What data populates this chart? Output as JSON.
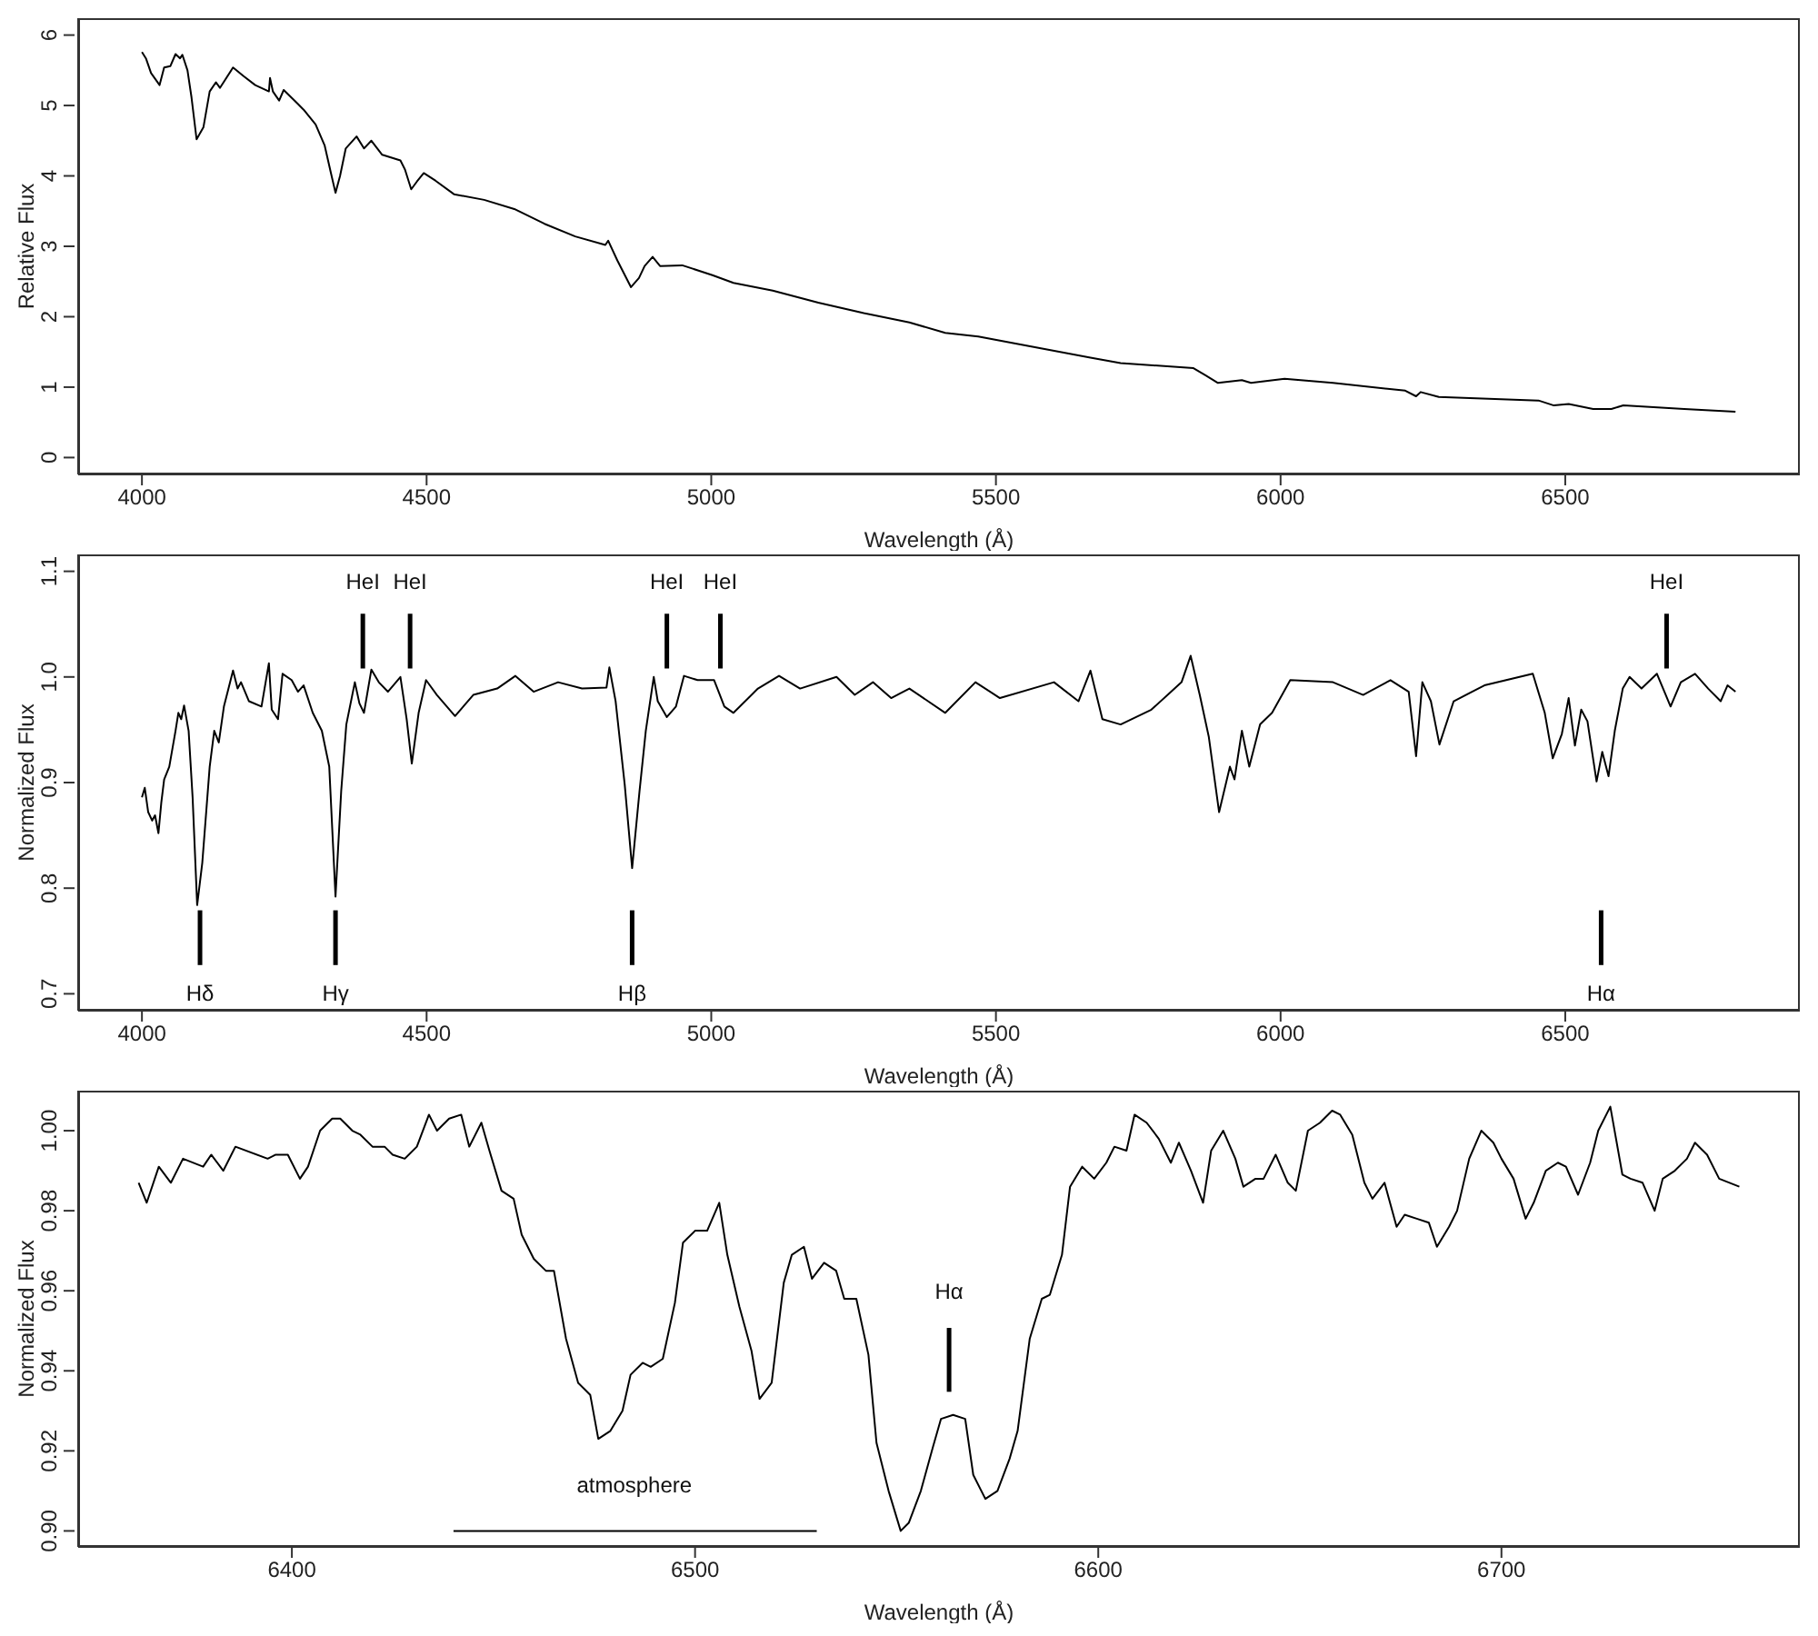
{
  "chart_data": [
    {
      "type": "line",
      "xlabel": "Wavelength (Å)",
      "ylabel": "Relative Flux",
      "xlim": [
        3888,
        6912
      ],
      "xticks": [
        4000,
        4500,
        5000,
        5500,
        6000,
        6500
      ],
      "ylim": [
        -0.24,
        6.24
      ],
      "yticks": [
        0,
        1,
        2,
        3,
        4,
        5,
        6
      ],
      "series": [
        {
          "color": "#000000",
          "x": [
            4000,
            4007,
            4016,
            4031,
            4039,
            4050,
            4059,
            4067,
            4071,
            4080,
            4087,
            4096,
            4108,
            4119,
            4130,
            4137,
            4160,
            4178,
            4199,
            4223,
            4225,
            4230,
            4241,
            4249,
            4273,
            4284,
            4305,
            4321,
            4332,
            4340,
            4348,
            4358,
            4377,
            4390,
            4403,
            4422,
            4454,
            4462,
            4473,
            4483,
            4495,
            4516,
            4548,
            4601,
            4654,
            4707,
            4761,
            4814,
            4819,
            4835,
            4859,
            4873,
            4883,
            4897,
            4910,
            4949,
            5002,
            5039,
            5108,
            5188,
            5268,
            5348,
            5411,
            5469,
            5560,
            5666,
            5719,
            5847,
            5868,
            5890,
            5932,
            5948,
            6007,
            6092,
            6219,
            6238,
            6246,
            6278,
            6453,
            6480,
            6506,
            6549,
            6581,
            6602,
            6709,
            6799
          ],
          "values": [
            5.76,
            5.67,
            5.46,
            5.29,
            5.54,
            5.56,
            5.73,
            5.67,
            5.72,
            5.5,
            5.12,
            4.52,
            4.69,
            5.2,
            5.33,
            5.25,
            5.54,
            5.42,
            5.29,
            5.2,
            5.39,
            5.2,
            5.07,
            5.22,
            5.03,
            4.94,
            4.73,
            4.43,
            4.04,
            3.76,
            4.0,
            4.39,
            4.56,
            4.39,
            4.5,
            4.3,
            4.22,
            4.09,
            3.81,
            3.92,
            4.04,
            3.93,
            3.74,
            3.66,
            3.53,
            3.32,
            3.14,
            3.02,
            3.08,
            2.8,
            2.42,
            2.55,
            2.72,
            2.85,
            2.72,
            2.73,
            2.59,
            2.48,
            2.37,
            2.2,
            2.05,
            1.92,
            1.77,
            1.72,
            1.58,
            1.42,
            1.34,
            1.27,
            1.17,
            1.06,
            1.1,
            1.06,
            1.12,
            1.06,
            0.95,
            0.87,
            0.93,
            0.86,
            0.81,
            0.74,
            0.76,
            0.69,
            0.69,
            0.74,
            0.69,
            0.65
          ]
        }
      ]
    },
    {
      "type": "line",
      "xlabel": "Wavelength (Å)",
      "ylabel": "Normalized Flux",
      "xlim": [
        3888,
        6912
      ],
      "xticks": [
        4000,
        4500,
        5000,
        5500,
        6000,
        6500
      ],
      "ylim": [
        0.684,
        1.116
      ],
      "yticks": [
        0.7,
        0.8,
        0.9,
        {
          "value": 1,
          "label": "1.0"
        },
        1.1
      ],
      "series": [
        {
          "color": "#000000",
          "x": [
            4000,
            4005,
            4011,
            4018,
            4023,
            4029,
            4034,
            4039,
            4048,
            4059,
            4064,
            4069,
            4074,
            4082,
            4089,
            4097,
            4106,
            4119,
            4127,
            4135,
            4144,
            4160,
            4168,
            4174,
            4188,
            4210,
            4223,
            4228,
            4239,
            4247,
            4263,
            4274,
            4284,
            4300,
            4316,
            4329,
            4340,
            4350,
            4359,
            4374,
            4382,
            4390,
            4403,
            4416,
            4432,
            4454,
            4465,
            4474,
            4486,
            4499,
            4518,
            4550,
            4582,
            4624,
            4656,
            4688,
            4731,
            4773,
            4816,
            4821,
            4832,
            4848,
            4861,
            4874,
            4885,
            4899,
            4906,
            4922,
            4938,
            4952,
            4976,
            5005,
            5023,
            5039,
            5082,
            5119,
            5156,
            5220,
            5252,
            5284,
            5316,
            5348,
            5411,
            5464,
            5507,
            5602,
            5645,
            5666,
            5687,
            5719,
            5773,
            5826,
            5842,
            5858,
            5874,
            5892,
            5911,
            5919,
            5932,
            5945,
            5964,
            5985,
            6017,
            6092,
            6145,
            6193,
            6225,
            6238,
            6249,
            6264,
            6279,
            6304,
            6358,
            6443,
            6464,
            6478,
            6494,
            6506,
            6517,
            6528,
            6539,
            6555,
            6565,
            6576,
            6587,
            6601,
            6613,
            6634,
            6661,
            6685,
            6703,
            6728,
            6751,
            6773,
            6785,
            6799
          ],
          "values": [
            0.886,
            0.895,
            0.872,
            0.864,
            0.869,
            0.852,
            0.881,
            0.903,
            0.915,
            0.949,
            0.966,
            0.96,
            0.973,
            0.949,
            0.886,
            0.784,
            0.824,
            0.915,
            0.949,
            0.938,
            0.972,
            1.006,
            0.989,
            0.995,
            0.977,
            0.972,
            1.013,
            0.969,
            0.96,
            1.003,
            0.997,
            0.986,
            0.992,
            0.966,
            0.949,
            0.915,
            0.792,
            0.892,
            0.955,
            0.995,
            0.975,
            0.966,
            1.007,
            0.995,
            0.986,
            1.0,
            0.96,
            0.918,
            0.966,
            0.997,
            0.983,
            0.963,
            0.983,
            0.989,
            1.001,
            0.986,
            0.995,
            0.989,
            0.99,
            1.009,
            0.977,
            0.898,
            0.819,
            0.892,
            0.949,
            1.0,
            0.977,
            0.962,
            0.972,
            1.001,
            0.997,
            0.997,
            0.972,
            0.966,
            0.989,
            1.001,
            0.989,
            1.0,
            0.983,
            0.995,
            0.98,
            0.989,
            0.966,
            0.995,
            0.98,
            0.995,
            0.977,
            1.006,
            0.96,
            0.955,
            0.969,
            0.995,
            1.02,
            0.983,
            0.943,
            0.872,
            0.915,
            0.903,
            0.949,
            0.915,
            0.955,
            0.966,
            0.997,
            0.995,
            0.983,
            0.997,
            0.986,
            0.925,
            0.995,
            0.977,
            0.936,
            0.977,
            0.992,
            1.003,
            0.966,
            0.923,
            0.946,
            0.98,
            0.935,
            0.969,
            0.958,
            0.901,
            0.929,
            0.906,
            0.949,
            0.989,
            1.0,
            0.989,
            1.003,
            0.972,
            0.995,
            1.003,
            0.989,
            0.977,
            0.992,
            0.986
          ]
        }
      ],
      "ref_lines": [
        {
          "axis": "x",
          "value": 4388,
          "label": "HeI"
        },
        {
          "axis": "x",
          "value": 4471,
          "label": "HeI"
        },
        {
          "axis": "x",
          "value": 4922,
          "label": "HeI"
        },
        {
          "axis": "x",
          "value": 5016,
          "label": "HeI"
        },
        {
          "axis": "x",
          "value": 6678,
          "label": "HeI"
        },
        {
          "axis": "x",
          "value": 4102,
          "label": "Hδ"
        },
        {
          "axis": "x",
          "value": 4340,
          "label": "Hγ"
        },
        {
          "axis": "x",
          "value": 4861,
          "label": "Hβ"
        },
        {
          "axis": "x",
          "value": 6563,
          "label": "Hα"
        }
      ]
    },
    {
      "type": "line",
      "xlabel": "Wavelength (Å)",
      "ylabel": "Normalized Flux",
      "xlim": [
        6347,
        6774
      ],
      "xticks": [
        6400,
        6500,
        6600,
        6700
      ],
      "ylim": [
        0.896,
        1.01
      ],
      "yticks": [
        {
          "value": 0.9,
          "label": "0.90"
        },
        {
          "value": 0.92,
          "label": "0.92"
        },
        {
          "value": 0.94,
          "label": "0.94"
        },
        {
          "value": 0.96,
          "label": "0.96"
        },
        {
          "value": 0.98,
          "label": "0.98"
        },
        {
          "value": 1,
          "label": "1.00"
        }
      ],
      "series": [
        {
          "color": "#000000",
          "x": [
            6362,
            6364,
            6367,
            6370,
            6373,
            6378,
            6380,
            6383,
            6386,
            6394,
            6396,
            6399,
            6402,
            6404,
            6407,
            6410,
            6412,
            6415,
            6417,
            6420,
            6423,
            6425,
            6428,
            6431,
            6434,
            6436,
            6439,
            6442,
            6444,
            6447,
            6449,
            6452,
            6455,
            6457,
            6460,
            6463,
            6465,
            6468,
            6471,
            6474,
            6476,
            6479,
            6482,
            6484,
            6487,
            6489,
            6492,
            6495,
            6497,
            6500,
            6503,
            6506,
            6508,
            6511,
            6514,
            6516,
            6519,
            6522,
            6524,
            6527,
            6529,
            6532,
            6535,
            6537,
            6540,
            6543,
            6545,
            6548,
            6551,
            6553,
            6556,
            6559,
            6561,
            6564,
            6567,
            6569,
            6572,
            6575,
            6578,
            6580,
            6583,
            6586,
            6588,
            6591,
            6593,
            6596,
            6599,
            6602,
            6604,
            6607,
            6609,
            6612,
            6615,
            6618,
            6620,
            6623,
            6626,
            6628,
            6631,
            6634,
            6636,
            6639,
            6641,
            6644,
            6647,
            6649,
            6652,
            6655,
            6658,
            6660,
            6663,
            6666,
            6668,
            6671,
            6674,
            6676,
            6679,
            6682,
            6684,
            6687,
            6689,
            6692,
            6695,
            6698,
            6700,
            6703,
            6706,
            6708,
            6711,
            6714,
            6716,
            6719,
            6722,
            6724,
            6727,
            6730,
            6732,
            6735,
            6738,
            6740,
            6743,
            6746,
            6748,
            6751,
            6754,
            6759
          ],
          "values": [
            0.987,
            0.982,
            0.991,
            0.987,
            0.993,
            0.991,
            0.994,
            0.99,
            0.996,
            0.993,
            0.994,
            0.994,
            0.988,
            0.991,
            1.0,
            1.003,
            1.003,
            1.0,
            0.999,
            0.996,
            0.996,
            0.994,
            0.993,
            0.996,
            1.004,
            1.0,
            1.003,
            1.004,
            0.996,
            1.002,
            0.995,
            0.985,
            0.983,
            0.974,
            0.968,
            0.965,
            0.965,
            0.948,
            0.937,
            0.934,
            0.923,
            0.925,
            0.93,
            0.939,
            0.942,
            0.941,
            0.943,
            0.957,
            0.972,
            0.975,
            0.975,
            0.982,
            0.969,
            0.956,
            0.945,
            0.933,
            0.937,
            0.962,
            0.969,
            0.971,
            0.963,
            0.967,
            0.965,
            0.958,
            0.958,
            0.944,
            0.922,
            0.91,
            0.9,
            0.902,
            0.91,
            0.921,
            0.928,
            0.929,
            0.928,
            0.914,
            0.908,
            0.91,
            0.918,
            0.925,
            0.948,
            0.958,
            0.959,
            0.969,
            0.986,
            0.991,
            0.988,
            0.992,
            0.996,
            0.995,
            1.004,
            1.002,
            0.998,
            0.992,
            0.997,
            0.99,
            0.982,
            0.995,
            1.0,
            0.993,
            0.986,
            0.988,
            0.988,
            0.994,
            0.987,
            0.985,
            1.0,
            1.002,
            1.005,
            1.004,
            0.999,
            0.987,
            0.983,
            0.987,
            0.976,
            0.979,
            0.978,
            0.977,
            0.971,
            0.976,
            0.98,
            0.993,
            1.0,
            0.997,
            0.993,
            0.988,
            0.978,
            0.982,
            0.99,
            0.992,
            0.991,
            0.984,
            0.992,
            1.0,
            1.006,
            0.989,
            0.988,
            0.987,
            0.98,
            0.988,
            0.99,
            0.993,
            0.997,
            0.994,
            0.988,
            0.986
          ]
        }
      ],
      "ref_lines": [
        {
          "axis": "x",
          "value": 6563,
          "label": "Hα"
        }
      ],
      "annotations": [
        "atmosphere"
      ]
    }
  ]
}
